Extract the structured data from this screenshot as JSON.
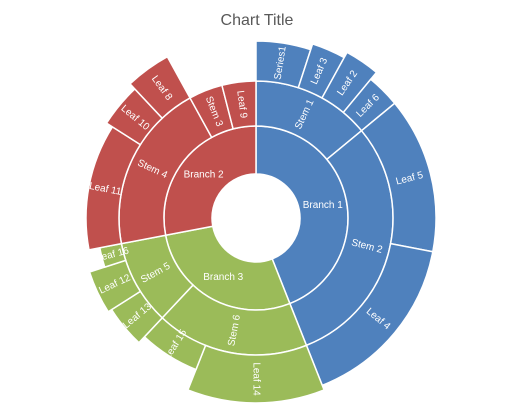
{
  "chart_data": {
    "type": "sunburst",
    "title": "Chart Title",
    "colors": {
      "Branch 1": "#4f81bd",
      "Branch 2": "#c0504d",
      "Branch 3": "#9bbb59"
    },
    "nodes": [
      {
        "name": "Branch 1",
        "level": 1,
        "branch": "Branch 1",
        "value": 22
      },
      {
        "name": "Stem 1",
        "level": 2,
        "branch": "Branch 1",
        "value": 7
      },
      {
        "name": "Series1",
        "level": 3,
        "branch": "Branch 1",
        "value": 2.5
      },
      {
        "name": "Leaf 3",
        "level": 3,
        "branch": "Branch 1",
        "value": 1.5
      },
      {
        "name": "Leaf 2",
        "level": 3,
        "branch": "Branch 1",
        "value": 1.5
      },
      {
        "name": "Leaf 6",
        "level": 3,
        "branch": "Branch 1",
        "value": 1.5
      },
      {
        "name": "Stem 2",
        "level": 2,
        "branch": "Branch 1",
        "value": 15
      },
      {
        "name": "Leaf 5",
        "level": 3,
        "branch": "Branch 1",
        "value": 7
      },
      {
        "name": "Leaf 4",
        "level": 3,
        "branch": "Branch 1",
        "value": 8
      },
      {
        "name": "Branch 3",
        "level": 1,
        "branch": "Branch 3",
        "value": 14
      },
      {
        "name": "Stem 6",
        "level": 2,
        "branch": "Branch 3",
        "value": 9
      },
      {
        "name": "Leaf 14",
        "level": 3,
        "branch": "Branch 3",
        "value": 6
      },
      {
        "name": "Leaf 15",
        "level": 3,
        "branch": "Branch 3",
        "value": 3
      },
      {
        "name": "Stem 5",
        "level": 2,
        "branch": "Branch 3",
        "value": 5
      },
      {
        "name": "Leaf 13",
        "level": 3,
        "branch": "Branch 3",
        "value": 2
      },
      {
        "name": "Leaf 12",
        "level": 3,
        "branch": "Branch 3",
        "value": 2
      },
      {
        "name": "Leaf 16",
        "level": 3,
        "branch": "Branch 3",
        "value": 1
      },
      {
        "name": "Branch 2",
        "level": 1,
        "branch": "Branch 2",
        "value": 14
      },
      {
        "name": "Stem 4",
        "level": 2,
        "branch": "Branch 2",
        "value": 10
      },
      {
        "name": "Leaf 11",
        "level": 3,
        "branch": "Branch 2",
        "value": 6
      },
      {
        "name": "Leaf 10",
        "level": 3,
        "branch": "Branch 2",
        "value": 2
      },
      {
        "name": "Leaf 8",
        "level": 3,
        "branch": "Branch 2",
        "value": 2
      },
      {
        "name": "Stem 3",
        "level": 2,
        "branch": "Branch 2",
        "value": 2
      },
      {
        "name": "Leaf 9",
        "level": 2,
        "branch": "Branch 2",
        "value": 2
      }
    ]
  }
}
